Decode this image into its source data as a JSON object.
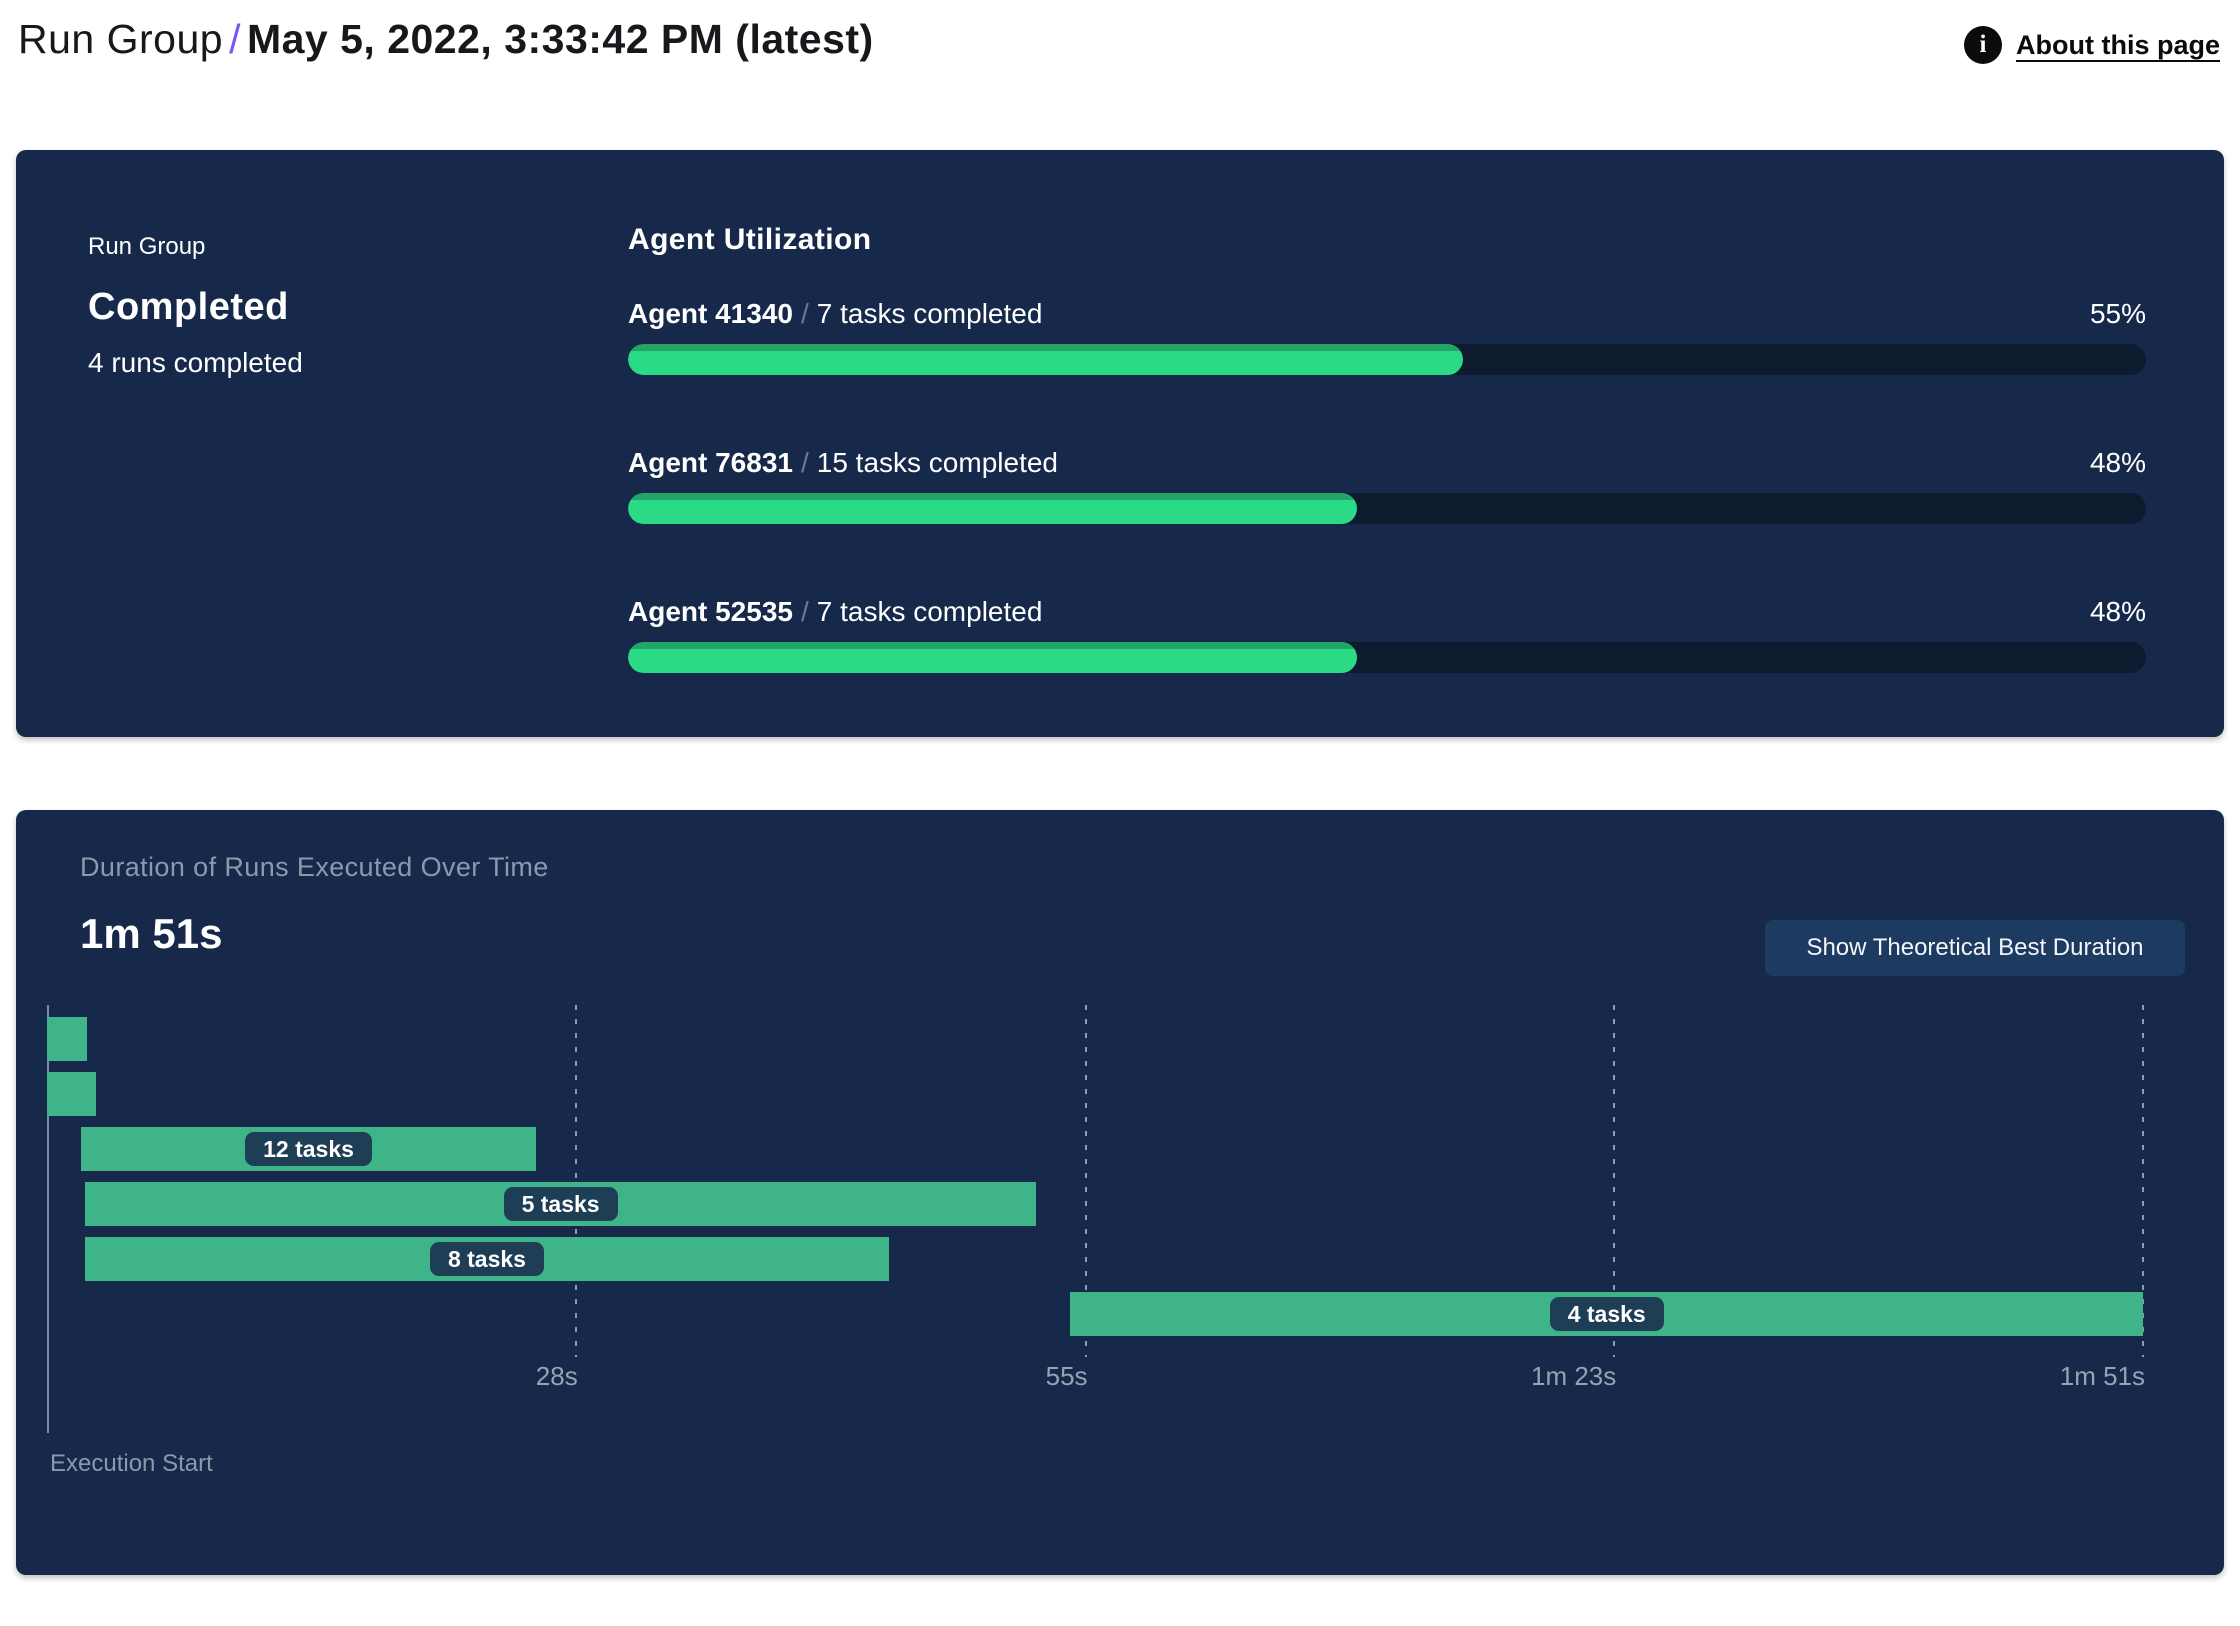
{
  "header": {
    "breadcrumb_root": "Run Group",
    "breadcrumb_separator": "/",
    "title": "May 5, 2022, 3:33:42 PM (latest)",
    "about_link": "About this page",
    "info_icon_glyph": "i",
    "accent_color": "#7b52f5"
  },
  "summary_panel": {
    "label": "Run Group",
    "status": "Completed",
    "runs_completed": "4 runs completed",
    "section_title": "Agent Utilization",
    "agents": [
      {
        "name": "Agent 41340",
        "separator": "/",
        "tasks": "7 tasks completed",
        "percent": 55,
        "percent_label": "55%"
      },
      {
        "name": "Agent 76831",
        "separator": "/",
        "tasks": "15 tasks completed",
        "percent": 48,
        "percent_label": "48%"
      },
      {
        "name": "Agent 52535",
        "separator": "/",
        "tasks": "7 tasks completed",
        "percent": 48,
        "percent_label": "48%"
      }
    ],
    "colors": {
      "panel_bg": "#17294a",
      "track": "#0d1b2e",
      "fill": "#2bda85",
      "fill_shade": "#25a467"
    }
  },
  "duration_panel": {
    "title": "Duration of Runs Executed Over Time",
    "total_duration": "1m 51s",
    "button_label": "Show Theoretical Best Duration",
    "axis_label": "Execution Start"
  },
  "chart_data": {
    "type": "bar",
    "subtype": "gantt-timeline",
    "title": "Duration of Runs Executed Over Time",
    "xlabel": "Execution Start",
    "x_range_seconds": [
      0,
      111
    ],
    "grid": "dotted-vertical",
    "x_ticks": [
      {
        "seconds": 28,
        "label": "28s"
      },
      {
        "seconds": 55,
        "label": "55s"
      },
      {
        "seconds": 83,
        "label": "1m 23s"
      },
      {
        "seconds": 111,
        "label": "1m 51s"
      }
    ],
    "runs": [
      {
        "start_s": 0,
        "end_s": 2.1,
        "label": ""
      },
      {
        "start_s": 0,
        "end_s": 2.6,
        "label": ""
      },
      {
        "start_s": 1.8,
        "end_s": 25.9,
        "label": "12 tasks"
      },
      {
        "start_s": 2.0,
        "end_s": 52.4,
        "label": "5 tasks"
      },
      {
        "start_s": 2.0,
        "end_s": 44.6,
        "label": "8 tasks"
      },
      {
        "start_s": 54.2,
        "end_s": 111,
        "label": "4 tasks"
      }
    ],
    "bar_color": "#3fb489",
    "label_pill_bg": "#1e3e56",
    "grid_color": "rgba(222,232,242,0.6)"
  }
}
